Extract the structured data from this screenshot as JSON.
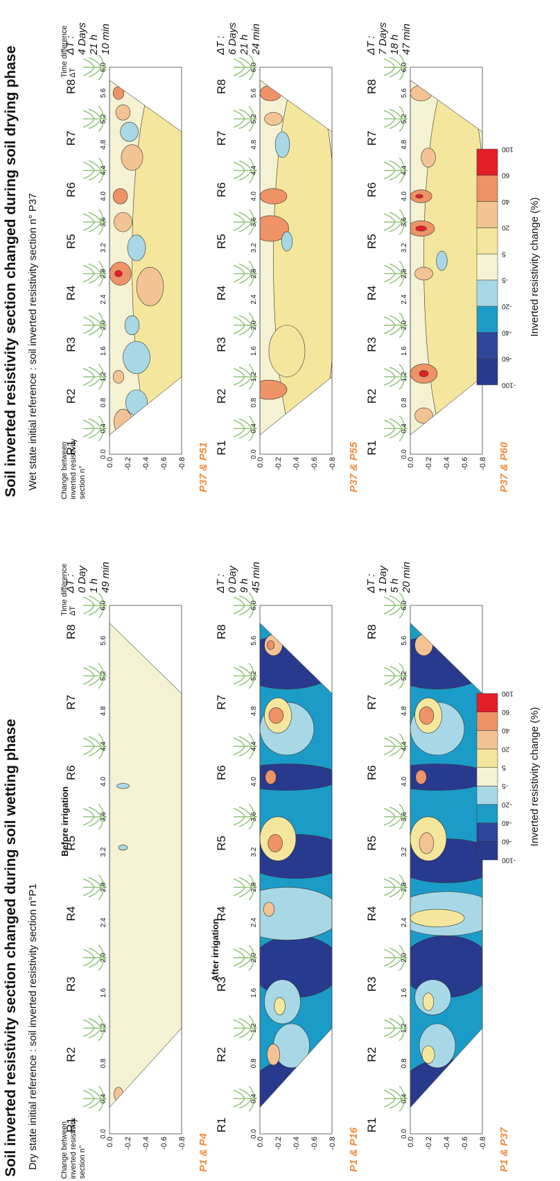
{
  "x_ticks": [
    "0.0",
    "0.4",
    "0.8",
    "1.2",
    "1.6",
    "2.0",
    "2.4",
    "2.8",
    "3.2",
    "3.6",
    "4.0",
    "4.4",
    "4.8",
    "5.2",
    "5.6",
    "6.0"
  ],
  "depth_ticks": [
    "0.0",
    "-0.2",
    "-0.4",
    "-0.6",
    "-0.8"
  ],
  "plant_labels": [
    "R1",
    "R2",
    "R3",
    "R4",
    "R5",
    "R6",
    "R7",
    "R8"
  ],
  "change_header": [
    "Change between",
    "inverted resistivity",
    "section n°"
  ],
  "time_header": [
    "Time difference",
    "ΔT"
  ],
  "colorbar_ticks": [
    "-100",
    "-60",
    "-40",
    "-20",
    "-5",
    "5",
    "20",
    "40",
    "60",
    "100"
  ],
  "colorbar_label": "Inverted resistivity change (%)",
  "phases": [
    {
      "title": "Soil inverted resistivity section changed during soil wetting phase",
      "subtitle": "Dry state initial reference : soil inverted resistivity section n°P1",
      "rows": [
        {
          "label": "P1 & P4",
          "note": "Before irrigation",
          "delta_t": [
            "ΔT :",
            "0 Day",
            "1 h",
            "49 min"
          ]
        },
        {
          "label": "P1 & P16",
          "note": "After irrigation",
          "delta_t": [
            "ΔT :",
            "0 Day",
            "9 h",
            "45 min"
          ]
        },
        {
          "label": "P1 & P37",
          "delta_t": [
            "ΔT :",
            "1 Day",
            "5 h",
            "20 min"
          ]
        }
      ]
    },
    {
      "title": "Soil inverted resistivity section changed during soil drying phase",
      "subtitle": "Wet state initial reference : soil inverted resistivity section n° P37",
      "rows": [
        {
          "label": "P37 & P51",
          "delta_t": [
            "ΔT :",
            "4 Days",
            "21 h",
            "10 min"
          ]
        },
        {
          "label": "P37 & P55",
          "delta_t": [
            "ΔT :",
            "6 Days",
            "21 h",
            "24 min"
          ]
        },
        {
          "label": "P37 & P60",
          "delta_t": [
            "ΔT :",
            "7 Days",
            "18 h",
            "47 min"
          ]
        }
      ]
    }
  ]
}
